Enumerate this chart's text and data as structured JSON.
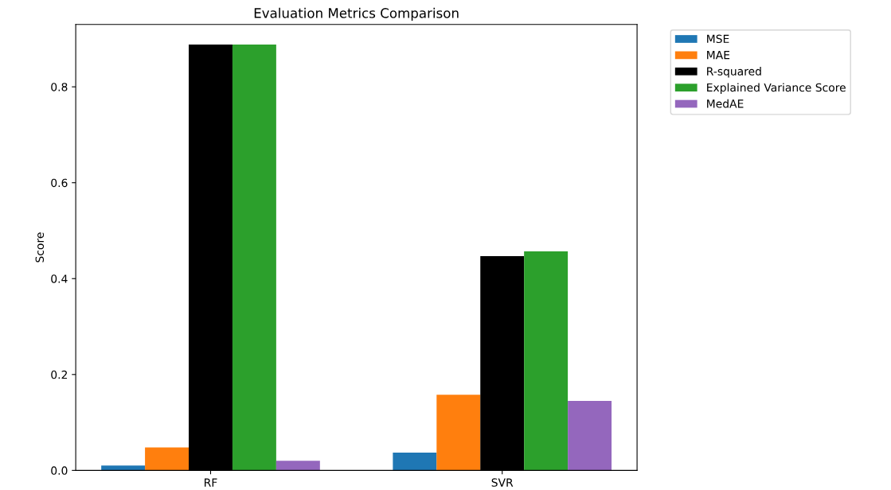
{
  "chart_data": {
    "type": "bar",
    "title": "Evaluation Metrics Comparison",
    "ylabel": "Score",
    "categories": [
      "RF",
      "SVR"
    ],
    "series": [
      {
        "name": "MSE",
        "color": "#1f77b4",
        "values": [
          0.01,
          0.037
        ]
      },
      {
        "name": "MAE",
        "color": "#ff7f0e",
        "values": [
          0.048,
          0.158
        ]
      },
      {
        "name": "R-squared",
        "color": "#000000",
        "values": [
          0.888,
          0.447
        ]
      },
      {
        "name": "Explained Variance Score",
        "color": "#2ca02c",
        "values": [
          0.888,
          0.457
        ]
      },
      {
        "name": "MedAE",
        "color": "#9467bd",
        "values": [
          0.02,
          0.145
        ]
      }
    ],
    "ylim": [
      0,
      0.93
    ],
    "yticks": [
      {
        "value": 0,
        "label": "0.0"
      },
      0.2,
      0.4,
      0.6,
      0.8
    ],
    "grid": false,
    "legend": "top right"
  }
}
